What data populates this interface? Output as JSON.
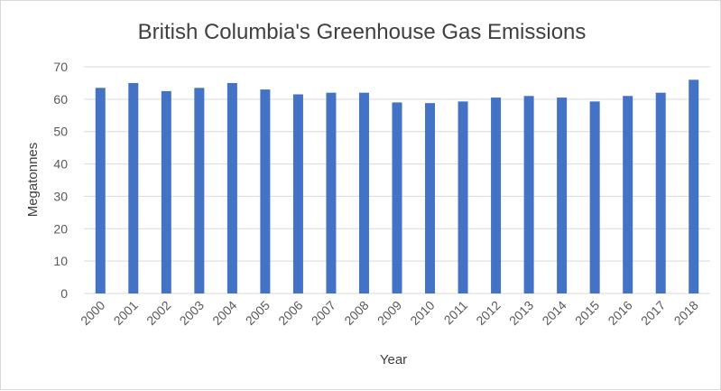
{
  "chart_data": {
    "type": "bar",
    "title": "British Columbia's Greenhouse Gas Emissions",
    "xlabel": "Year",
    "ylabel": "Megatonnes",
    "categories": [
      "2000",
      "2001",
      "2002",
      "2003",
      "2004",
      "2005",
      "2006",
      "2007",
      "2008",
      "2009",
      "2010",
      "2011",
      "2012",
      "2013",
      "2014",
      "2015",
      "2016",
      "2017",
      "2018"
    ],
    "series": [
      {
        "values": [
          63.5,
          65.0,
          62.5,
          63.5,
          65.0,
          63.0,
          61.5,
          62.0,
          62.0,
          59.0,
          58.8,
          59.3,
          60.5,
          61.0,
          60.5,
          59.3,
          61.0,
          62.0,
          66.0
        ]
      }
    ],
    "ylim": [
      0,
      70
    ],
    "yticks": [
      0,
      10,
      20,
      30,
      40,
      50,
      60,
      70
    ],
    "grid": true,
    "legend": "none",
    "colors": {
      "bar": "#4472c4",
      "grid": "#d9d9d9",
      "text": "#595959"
    }
  }
}
